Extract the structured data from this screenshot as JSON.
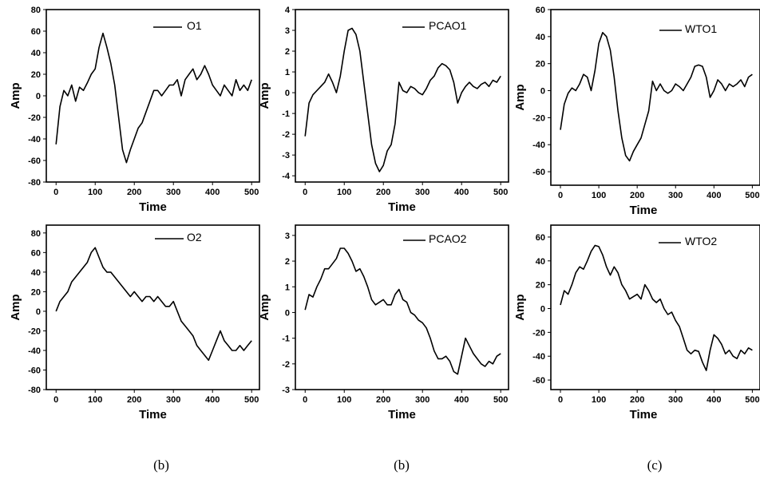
{
  "chart_data": [
    {
      "type": "line",
      "legend": "O1",
      "xlabel": "Time",
      "ylabel": "Amp",
      "xlim": [
        -25,
        520
      ],
      "ylim": [
        -80,
        80
      ],
      "xticks": [
        0,
        100,
        200,
        300,
        400,
        500
      ],
      "yticks": [
        -80,
        -60,
        -40,
        -20,
        0,
        20,
        40,
        60,
        80
      ],
      "legend_position": "top-right",
      "series": [
        {
          "x": [
            0,
            10,
            20,
            30,
            40,
            50,
            60,
            70,
            80,
            90,
            100,
            110,
            120,
            130,
            140,
            150,
            160,
            170,
            180,
            190,
            200,
            210,
            220,
            230,
            240,
            250,
            260,
            270,
            280,
            290,
            300,
            310,
            320,
            330,
            340,
            350,
            360,
            370,
            380,
            390,
            400,
            410,
            420,
            430,
            440,
            450,
            460,
            470,
            480,
            490,
            500
          ],
          "y": [
            -45,
            -10,
            5,
            0,
            10,
            -5,
            8,
            5,
            12,
            20,
            25,
            45,
            58,
            45,
            30,
            10,
            -20,
            -50,
            -62,
            -50,
            -40,
            -30,
            -25,
            -15,
            -5,
            5,
            5,
            0,
            5,
            10,
            10,
            15,
            0,
            15,
            20,
            25,
            15,
            20,
            28,
            20,
            10,
            5,
            0,
            10,
            5,
            0,
            15,
            5,
            10,
            5,
            15
          ]
        }
      ]
    },
    {
      "type": "line",
      "legend": "PCAO1",
      "xlabel": "Time",
      "ylabel": "Amp",
      "xlim": [
        -25,
        520
      ],
      "ylim": [
        -4.3,
        4
      ],
      "xticks": [
        0,
        100,
        200,
        300,
        400,
        500
      ],
      "yticks": [
        -4,
        -3,
        -2,
        -1,
        0,
        1,
        2,
        3,
        4
      ],
      "legend_position": "top-right",
      "series": [
        {
          "x": [
            0,
            10,
            20,
            30,
            40,
            50,
            60,
            70,
            80,
            90,
            100,
            110,
            120,
            130,
            140,
            150,
            160,
            170,
            180,
            190,
            200,
            210,
            220,
            230,
            240,
            250,
            260,
            270,
            280,
            290,
            300,
            310,
            320,
            330,
            340,
            350,
            360,
            370,
            380,
            390,
            400,
            410,
            420,
            430,
            440,
            450,
            460,
            470,
            480,
            490,
            500
          ],
          "y": [
            -2.1,
            -0.5,
            -0.1,
            0.1,
            0.3,
            0.5,
            0.9,
            0.5,
            0.0,
            0.8,
            2.0,
            3.0,
            3.1,
            2.8,
            2.0,
            0.5,
            -1.0,
            -2.5,
            -3.4,
            -3.8,
            -3.5,
            -2.8,
            -2.5,
            -1.5,
            0.5,
            0.1,
            0.0,
            0.3,
            0.2,
            0.0,
            -0.1,
            0.2,
            0.6,
            0.8,
            1.2,
            1.4,
            1.3,
            1.1,
            0.5,
            -0.5,
            0.0,
            0.3,
            0.5,
            0.3,
            0.2,
            0.4,
            0.5,
            0.3,
            0.6,
            0.5,
            0.8
          ]
        }
      ]
    },
    {
      "type": "line",
      "legend": "WTO1",
      "xlabel": "Time",
      "ylabel": "Amp",
      "xlim": [
        -25,
        520
      ],
      "ylim": [
        -70,
        60
      ],
      "xticks": [
        0,
        100,
        200,
        300,
        400,
        500
      ],
      "yticks": [
        -60,
        -40,
        -20,
        0,
        20,
        40,
        60
      ],
      "legend_position": "top-right",
      "series": [
        {
          "x": [
            0,
            10,
            20,
            30,
            40,
            50,
            60,
            70,
            80,
            90,
            100,
            110,
            120,
            130,
            140,
            150,
            160,
            170,
            180,
            190,
            200,
            210,
            220,
            230,
            240,
            250,
            260,
            270,
            280,
            290,
            300,
            310,
            320,
            330,
            340,
            350,
            360,
            370,
            380,
            390,
            400,
            410,
            420,
            430,
            440,
            450,
            460,
            470,
            480,
            490,
            500
          ],
          "y": [
            -29,
            -10,
            -2,
            2,
            0,
            5,
            12,
            10,
            0,
            15,
            35,
            43,
            40,
            30,
            10,
            -15,
            -35,
            -48,
            -52,
            -45,
            -40,
            -35,
            -25,
            -15,
            7,
            0,
            5,
            0,
            -2,
            0,
            5,
            3,
            0,
            5,
            10,
            18,
            19,
            18,
            10,
            -5,
            0,
            8,
            5,
            0,
            5,
            3,
            5,
            8,
            3,
            10,
            12
          ]
        }
      ]
    },
    {
      "type": "line",
      "legend": "O2",
      "xlabel": "Time",
      "ylabel": "Amp",
      "xlim": [
        -25,
        520
      ],
      "ylim": [
        -80,
        88
      ],
      "xticks": [
        0,
        100,
        200,
        300,
        400,
        500
      ],
      "yticks": [
        -80,
        -60,
        -40,
        -20,
        0,
        20,
        40,
        60,
        80
      ],
      "legend_position": "top-right",
      "series": [
        {
          "x": [
            0,
            10,
            20,
            30,
            40,
            50,
            60,
            70,
            80,
            90,
            100,
            110,
            120,
            130,
            140,
            150,
            160,
            170,
            180,
            190,
            200,
            210,
            220,
            230,
            240,
            250,
            260,
            270,
            280,
            290,
            300,
            310,
            320,
            330,
            340,
            350,
            360,
            370,
            380,
            390,
            400,
            410,
            420,
            430,
            440,
            450,
            460,
            470,
            480,
            490,
            500
          ],
          "y": [
            0,
            10,
            15,
            20,
            30,
            35,
            40,
            45,
            50,
            60,
            65,
            55,
            45,
            40,
            40,
            35,
            30,
            25,
            20,
            15,
            20,
            15,
            10,
            15,
            15,
            10,
            15,
            10,
            5,
            5,
            10,
            0,
            -10,
            -15,
            -20,
            -25,
            -35,
            -40,
            -45,
            -50,
            -40,
            -30,
            -20,
            -30,
            -35,
            -40,
            -40,
            -35,
            -40,
            -35,
            -30
          ]
        }
      ]
    },
    {
      "type": "line",
      "legend": "PCAO2",
      "xlabel": "Time",
      "ylabel": "Amp",
      "xlim": [
        -25,
        520
      ],
      "ylim": [
        -3,
        3.4
      ],
      "xticks": [
        0,
        100,
        200,
        300,
        400,
        500
      ],
      "yticks": [
        -3,
        -2,
        -1,
        0,
        1,
        2,
        3
      ],
      "legend_position": "top-right",
      "series": [
        {
          "x": [
            0,
            10,
            20,
            30,
            40,
            50,
            60,
            70,
            80,
            90,
            100,
            110,
            120,
            130,
            140,
            150,
            160,
            170,
            180,
            190,
            200,
            210,
            220,
            230,
            240,
            250,
            260,
            270,
            280,
            290,
            300,
            310,
            320,
            330,
            340,
            350,
            360,
            370,
            380,
            390,
            400,
            410,
            420,
            430,
            440,
            450,
            460,
            470,
            480,
            490,
            500
          ],
          "y": [
            0.1,
            0.7,
            0.6,
            1.0,
            1.3,
            1.7,
            1.7,
            1.9,
            2.1,
            2.5,
            2.5,
            2.3,
            2.0,
            1.6,
            1.7,
            1.4,
            1.0,
            0.5,
            0.3,
            0.4,
            0.5,
            0.3,
            0.3,
            0.7,
            0.9,
            0.5,
            0.4,
            0.0,
            -0.1,
            -0.3,
            -0.4,
            -0.6,
            -1.0,
            -1.5,
            -1.8,
            -1.8,
            -1.7,
            -1.9,
            -2.3,
            -2.4,
            -1.7,
            -1.0,
            -1.3,
            -1.6,
            -1.8,
            -2.0,
            -2.1,
            -1.9,
            -2.0,
            -1.7,
            -1.6
          ]
        }
      ]
    },
    {
      "type": "line",
      "legend": "WTO2",
      "xlabel": "Time",
      "ylabel": "Amp",
      "xlim": [
        -25,
        520
      ],
      "ylim": [
        -68,
        70
      ],
      "xticks": [
        0,
        100,
        200,
        300,
        400,
        500
      ],
      "yticks": [
        -60,
        -40,
        -20,
        0,
        20,
        40,
        60
      ],
      "legend_position": "top-right",
      "series": [
        {
          "x": [
            0,
            10,
            20,
            30,
            40,
            50,
            60,
            70,
            80,
            90,
            100,
            110,
            120,
            130,
            140,
            150,
            160,
            170,
            180,
            190,
            200,
            210,
            220,
            230,
            240,
            250,
            260,
            270,
            280,
            290,
            300,
            310,
            320,
            330,
            340,
            350,
            360,
            370,
            380,
            390,
            400,
            410,
            420,
            430,
            440,
            450,
            460,
            470,
            480,
            490,
            500
          ],
          "y": [
            3,
            15,
            12,
            20,
            30,
            35,
            33,
            40,
            48,
            53,
            52,
            45,
            35,
            28,
            35,
            30,
            20,
            15,
            8,
            10,
            12,
            8,
            20,
            15,
            8,
            5,
            8,
            0,
            -5,
            -3,
            -10,
            -15,
            -25,
            -35,
            -38,
            -35,
            -36,
            -45,
            -52,
            -35,
            -22,
            -25,
            -30,
            -38,
            -35,
            -40,
            -42,
            -35,
            -38,
            -33,
            -35
          ]
        }
      ]
    }
  ],
  "captions": [
    "(b)",
    "(b)",
    "(c)"
  ]
}
